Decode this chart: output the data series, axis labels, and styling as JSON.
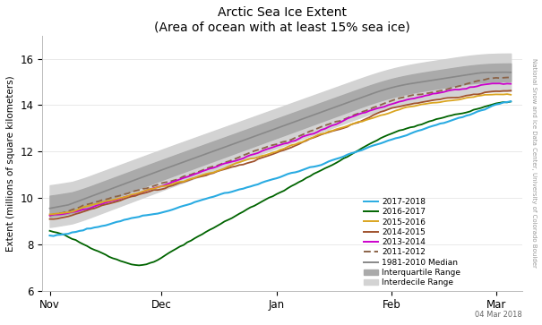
{
  "title": "Arctic Sea Ice Extent",
  "subtitle": "(Area of ocean with at least 15% sea ice)",
  "ylabel": "Extent (millions of square kilometers)",
  "xlabel_ticks": [
    "Nov",
    "Dec",
    "Jan",
    "Feb",
    "Mar"
  ],
  "ylim": [
    6,
    17
  ],
  "yticks": [
    6,
    8,
    10,
    12,
    14,
    16
  ],
  "date_label": "04 Mar 2018",
  "watermark": "National Snow and Ice Data Center, University of Colorado Boulder",
  "colors": {
    "2017-2018": "#29ABE2",
    "2016-2017": "#006400",
    "2015-2016": "#DAA520",
    "2014-2015": "#A0522D",
    "2013-2014": "#CC00CC",
    "2011-2012": "#8B6347",
    "median": "#888888",
    "interquartile": "#AAAAAA",
    "interdecile": "#D3D3D3"
  },
  "background": "#FFFFFF",
  "month_ticks": [
    0,
    30,
    61,
    92,
    120
  ],
  "n_days": 125
}
